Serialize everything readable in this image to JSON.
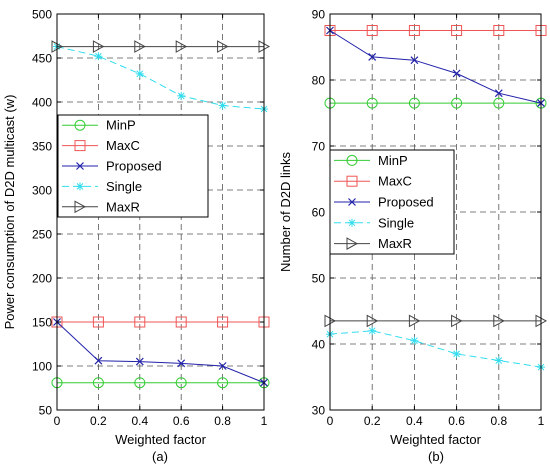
{
  "chart_data": [
    {
      "type": "line",
      "caption": "(a)",
      "xlabel": "Weighted factor",
      "ylabel": "Power consumption of D2D multicast (w)",
      "xlim": [
        0,
        1
      ],
      "ylim": [
        50,
        500
      ],
      "xticks": [
        0,
        0.2,
        0.4,
        0.6,
        0.8,
        1
      ],
      "xtick_labels": [
        "0",
        "0.2",
        "0.4",
        "0.6",
        "0.8",
        "1"
      ],
      "yticks": [
        50,
        100,
        150,
        200,
        250,
        300,
        350,
        400,
        450,
        500
      ],
      "ytick_labels": [
        "50",
        "100",
        "150",
        "200",
        "250",
        "300",
        "350",
        "400",
        "450",
        "500"
      ],
      "grid": true,
      "legend_position": "center-left",
      "x": [
        0,
        0.2,
        0.4,
        0.6,
        0.8,
        1
      ],
      "series": [
        {
          "name": "MinP",
          "color": "#33cc33",
          "marker": "circle",
          "dash": "solid",
          "values": [
            81,
            81,
            81,
            81,
            81,
            81
          ]
        },
        {
          "name": "MaxC",
          "color": "#ee5555",
          "marker": "square",
          "dash": "solid",
          "values": [
            150,
            150,
            150,
            150,
            150,
            150
          ]
        },
        {
          "name": "Proposed",
          "color": "#2222aa",
          "marker": "x",
          "dash": "solid",
          "values": [
            150,
            106,
            105,
            103,
            100,
            81
          ]
        },
        {
          "name": "Single",
          "color": "#33ddee",
          "marker": "star",
          "dash": "dashed",
          "values": [
            463,
            452,
            432,
            407,
            396,
            392
          ]
        },
        {
          "name": "MaxR",
          "color": "#444444",
          "marker": "triangle-right",
          "dash": "solid",
          "values": [
            463,
            463,
            463,
            463,
            463,
            463
          ]
        }
      ]
    },
    {
      "type": "line",
      "caption": "(b)",
      "xlabel": "Weighted factor",
      "ylabel": "Number of D2D links",
      "xlim": [
        0,
        1
      ],
      "ylim": [
        30,
        90
      ],
      "xticks": [
        0,
        0.2,
        0.4,
        0.6,
        0.8,
        1
      ],
      "xtick_labels": [
        "0",
        "0.2",
        "0.4",
        "0.6",
        "0.8",
        "1"
      ],
      "yticks": [
        30,
        40,
        50,
        60,
        70,
        80,
        90
      ],
      "ytick_labels": [
        "30",
        "40",
        "50",
        "60",
        "70",
        "80",
        "90"
      ],
      "grid": true,
      "legend_position": "center-left",
      "x": [
        0,
        0.2,
        0.4,
        0.6,
        0.8,
        1
      ],
      "series": [
        {
          "name": "MinP",
          "color": "#33cc33",
          "marker": "circle",
          "dash": "solid",
          "values": [
            76.5,
            76.5,
            76.5,
            76.5,
            76.5,
            76.5
          ]
        },
        {
          "name": "MaxC",
          "color": "#ee5555",
          "marker": "square",
          "dash": "solid",
          "values": [
            87.5,
            87.5,
            87.5,
            87.5,
            87.5,
            87.5
          ]
        },
        {
          "name": "Proposed",
          "color": "#2222aa",
          "marker": "x",
          "dash": "solid",
          "values": [
            87.5,
            83.5,
            83,
            81,
            78,
            76.5
          ]
        },
        {
          "name": "Single",
          "color": "#33ddee",
          "marker": "star",
          "dash": "dashed",
          "values": [
            41.5,
            42,
            40.5,
            38.5,
            37.5,
            36.5
          ]
        },
        {
          "name": "MaxR",
          "color": "#444444",
          "marker": "triangle-right",
          "dash": "solid",
          "values": [
            43.5,
            43.5,
            43.5,
            43.5,
            43.5,
            43.5
          ]
        }
      ]
    }
  ]
}
